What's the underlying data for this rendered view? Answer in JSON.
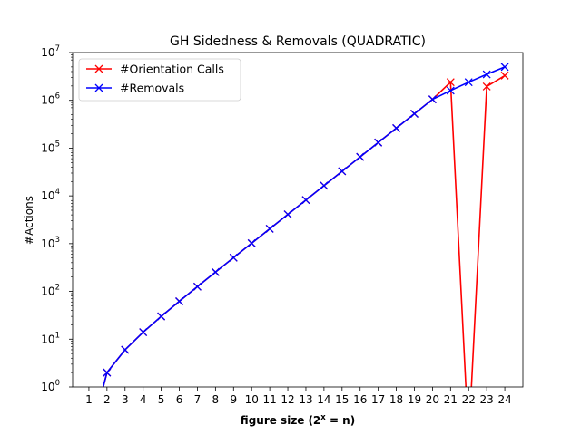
{
  "chart_data": {
    "type": "line",
    "title": "GH Sidedness & Removals (QUADRATIC)",
    "xlabel": "figure size",
    "xlabel_math": "(2",
    "xlabel_sup": "x",
    "xlabel_tail": " = n)",
    "ylabel": "#Actions",
    "yscale": "log",
    "xlim": [
      0.1,
      25.0
    ],
    "ylim": [
      1,
      10000000
    ],
    "x_ticks": [
      1,
      2,
      3,
      4,
      5,
      6,
      7,
      8,
      9,
      10,
      11,
      12,
      13,
      14,
      15,
      16,
      17,
      18,
      19,
      20,
      21,
      22,
      23,
      24
    ],
    "y_ticks": [
      {
        "base": "10",
        "exp": "0",
        "value": 1
      },
      {
        "base": "10",
        "exp": "1",
        "value": 10
      },
      {
        "base": "10",
        "exp": "2",
        "value": 100
      },
      {
        "base": "10",
        "exp": "3",
        "value": 1000
      },
      {
        "base": "10",
        "exp": "4",
        "value": 10000
      },
      {
        "base": "10",
        "exp": "5",
        "value": 100000
      },
      {
        "base": "10",
        "exp": "6",
        "value": 1000000
      },
      {
        "base": "10",
        "exp": "7",
        "value": 10000000
      }
    ],
    "grid": false,
    "legend_position": "top-left",
    "series": [
      {
        "name": "#Orientation Calls",
        "color": "#ff0000",
        "marker": "x",
        "x": [
          1,
          2,
          3,
          4,
          5,
          6,
          7,
          8,
          9,
          10,
          11,
          12,
          13,
          14,
          15,
          16,
          17,
          18,
          19,
          20,
          21,
          22,
          23,
          24
        ],
        "y": [
          0,
          2,
          6,
          14,
          30,
          62,
          126,
          254,
          510,
          1022,
          2046,
          4094,
          8190,
          16382,
          32766,
          65534,
          131070,
          262142,
          524286,
          1048574,
          2400000,
          0,
          1950000,
          3300000
        ]
      },
      {
        "name": "#Removals",
        "color": "#0000ff",
        "marker": "x",
        "x": [
          1,
          2,
          3,
          4,
          5,
          6,
          7,
          8,
          9,
          10,
          11,
          12,
          13,
          14,
          15,
          16,
          17,
          18,
          19,
          20,
          21,
          22,
          23,
          24
        ],
        "y": [
          0,
          2,
          6,
          14,
          30,
          62,
          126,
          254,
          510,
          1022,
          2046,
          4094,
          8190,
          16382,
          32766,
          65534,
          131070,
          262142,
          524286,
          1048574,
          1600000,
          2400000,
          3500000,
          5000000
        ]
      }
    ]
  }
}
